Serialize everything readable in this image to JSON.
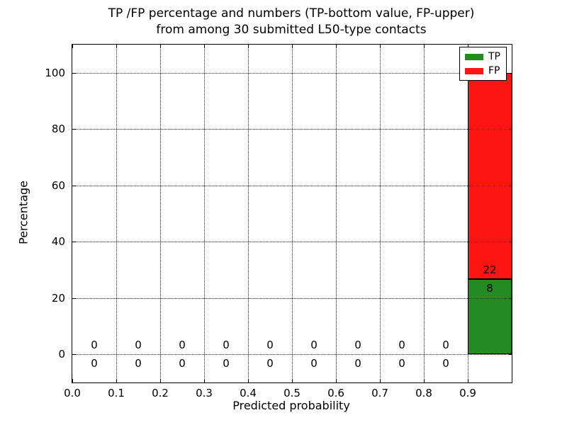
{
  "chart_data": {
    "type": "bar",
    "stacked": true,
    "title_line1": "TP /FP percentage and numbers (TP-bottom value, FP-upper)",
    "title_line2": "from among 30 submitted L50-type contacts",
    "xlabel": "Predicted probability",
    "ylabel": "Percentage",
    "xlim": [
      0.0,
      1.0
    ],
    "ylim": [
      -10,
      110
    ],
    "x_ticks": [
      "0.0",
      "0.1",
      "0.2",
      "0.3",
      "0.4",
      "0.5",
      "0.6",
      "0.7",
      "0.8",
      "0.9"
    ],
    "y_ticks": [
      "0",
      "20",
      "40",
      "60",
      "80",
      "100"
    ],
    "grid": true,
    "grid_style": "dotted",
    "total_contacts": 30,
    "bin_width": 0.1,
    "bin_centers": [
      0.05,
      0.15,
      0.25,
      0.35,
      0.45,
      0.55,
      0.65,
      0.75,
      0.85,
      0.95
    ],
    "series": [
      {
        "name": "TP",
        "color": "#228B22",
        "counts": [
          0,
          0,
          0,
          0,
          0,
          0,
          0,
          0,
          0,
          8
        ],
        "percent_of_total": [
          0,
          0,
          0,
          0,
          0,
          0,
          0,
          0,
          0,
          26.67
        ]
      },
      {
        "name": "FP",
        "color": "#FA1511",
        "counts": [
          0,
          0,
          0,
          0,
          0,
          0,
          0,
          0,
          0,
          22
        ],
        "percent_of_total": [
          0,
          0,
          0,
          0,
          0,
          0,
          0,
          0,
          0,
          73.33
        ]
      }
    ],
    "annotations": {
      "fp_labels": [
        "0",
        "0",
        "0",
        "0",
        "0",
        "0",
        "0",
        "0",
        "0",
        "22"
      ],
      "tp_labels": [
        "0",
        "0",
        "0",
        "0",
        "0",
        "0",
        "0",
        "0",
        "0",
        "8"
      ],
      "fp_offset_pct": 3.33,
      "tp_offset_pct": -3.2
    },
    "legend": {
      "position": "upper right",
      "entries": [
        {
          "label": "TP",
          "color": "#228B22"
        },
        {
          "label": "FP",
          "color": "#FA1511"
        }
      ]
    }
  }
}
